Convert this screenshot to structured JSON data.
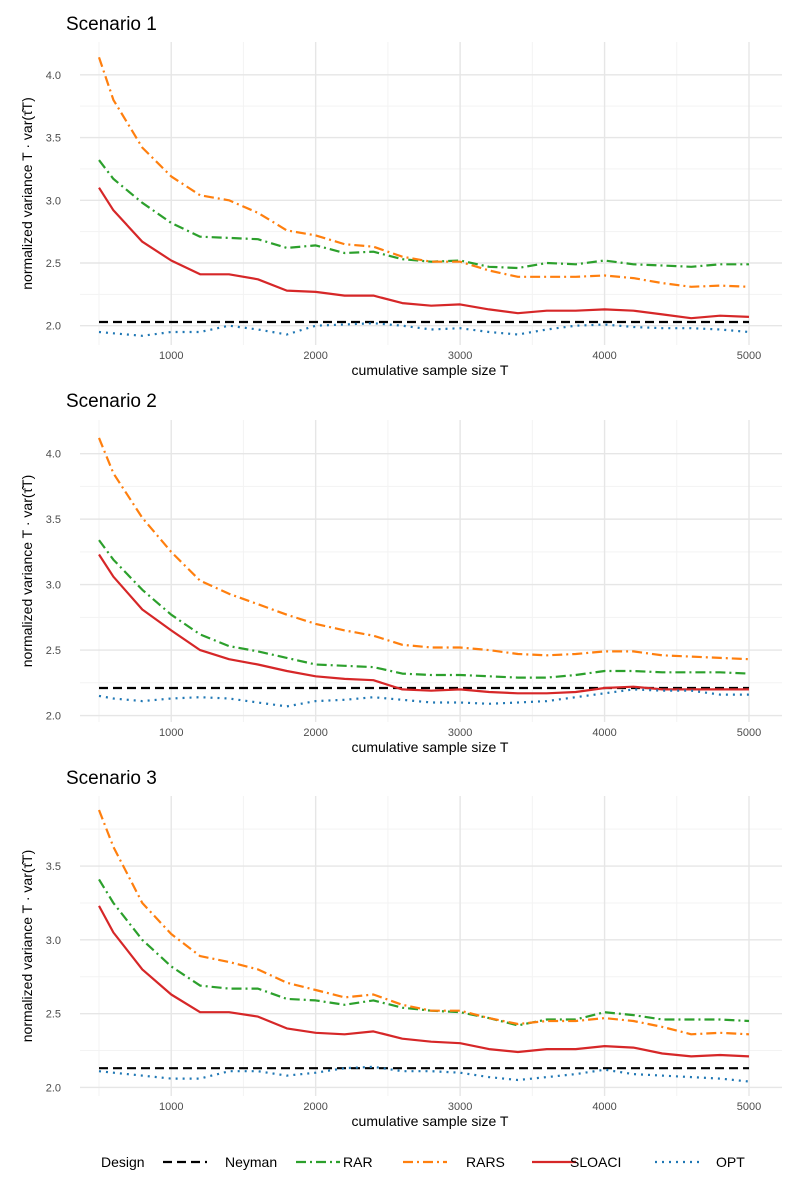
{
  "colors": {
    "Neyman": "#000000",
    "RAR": "#2ca02c",
    "RARS": "#ff7f0e",
    "SLOACI": "#d62728",
    "OPT": "#1f77b4",
    "grid": "#ebebeb"
  },
  "legend": {
    "title": "Design",
    "items": [
      "Neyman",
      "RAR",
      "RARS",
      "SLOACI",
      "OPT"
    ]
  },
  "chart_data": [
    {
      "type": "line",
      "title": "Scenario 1",
      "xlabel": "cumulative sample size T",
      "ylabel": "normalized variance   T · var(τ̂T)",
      "xlim": [
        500,
        5000
      ],
      "ylim": [
        1.95,
        4.15
      ],
      "xticks": [
        1000,
        2000,
        3000,
        4000,
        5000
      ],
      "yticks": [
        2.0,
        2.5,
        3.0,
        3.5,
        4.0
      ],
      "x": [
        500,
        600,
        800,
        1000,
        1200,
        1400,
        1600,
        1800,
        2000,
        2200,
        2400,
        2600,
        2800,
        3000,
        3200,
        3400,
        3600,
        3800,
        4000,
        4200,
        4400,
        4600,
        4800,
        5000
      ],
      "series": [
        {
          "name": "Neyman",
          "values": [
            2.03,
            2.03,
            2.03,
            2.03,
            2.03,
            2.03,
            2.03,
            2.03,
            2.03,
            2.03,
            2.03,
            2.03,
            2.03,
            2.03,
            2.03,
            2.03,
            2.03,
            2.03,
            2.03,
            2.03,
            2.03,
            2.03,
            2.03,
            2.03
          ]
        },
        {
          "name": "RAR",
          "values": [
            3.32,
            3.17,
            2.98,
            2.82,
            2.71,
            2.7,
            2.69,
            2.62,
            2.64,
            2.58,
            2.59,
            2.53,
            2.51,
            2.52,
            2.47,
            2.46,
            2.5,
            2.49,
            2.52,
            2.49,
            2.48,
            2.47,
            2.49,
            2.49
          ]
        },
        {
          "name": "RARS",
          "values": [
            4.14,
            3.8,
            3.42,
            3.19,
            3.04,
            3.0,
            2.9,
            2.76,
            2.72,
            2.65,
            2.63,
            2.55,
            2.51,
            2.51,
            2.44,
            2.39,
            2.39,
            2.39,
            2.4,
            2.38,
            2.34,
            2.31,
            2.32,
            2.31
          ]
        },
        {
          "name": "SLOACI",
          "values": [
            3.1,
            2.92,
            2.67,
            2.52,
            2.41,
            2.41,
            2.37,
            2.28,
            2.27,
            2.24,
            2.24,
            2.18,
            2.16,
            2.17,
            2.13,
            2.1,
            2.12,
            2.12,
            2.13,
            2.12,
            2.09,
            2.06,
            2.08,
            2.07
          ]
        },
        {
          "name": "OPT",
          "values": [
            1.95,
            1.94,
            1.92,
            1.95,
            1.95,
            2.0,
            1.97,
            1.93,
            2.0,
            2.01,
            2.02,
            2.0,
            1.97,
            1.98,
            1.95,
            1.93,
            1.97,
            2.0,
            2.01,
            1.99,
            1.98,
            1.98,
            1.97,
            1.95
          ]
        }
      ]
    },
    {
      "type": "line",
      "title": "Scenario 2",
      "xlabel": "cumulative sample size T",
      "ylabel": "normalized variance   T · var(τ̂T)",
      "xlim": [
        500,
        5000
      ],
      "ylim": [
        2.05,
        4.15
      ],
      "xticks": [
        1000,
        2000,
        3000,
        4000,
        5000
      ],
      "yticks": [
        2.0,
        2.5,
        3.0,
        3.5,
        4.0
      ],
      "x": [
        500,
        600,
        800,
        1000,
        1200,
        1400,
        1600,
        1800,
        2000,
        2200,
        2400,
        2600,
        2800,
        3000,
        3200,
        3400,
        3600,
        3800,
        4000,
        4200,
        4400,
        4600,
        4800,
        5000
      ],
      "series": [
        {
          "name": "Neyman",
          "values": [
            2.21,
            2.21,
            2.21,
            2.21,
            2.21,
            2.21,
            2.21,
            2.21,
            2.21,
            2.21,
            2.21,
            2.21,
            2.21,
            2.21,
            2.21,
            2.21,
            2.21,
            2.21,
            2.21,
            2.21,
            2.21,
            2.21,
            2.21,
            2.21
          ]
        },
        {
          "name": "RAR",
          "values": [
            3.34,
            3.19,
            2.96,
            2.77,
            2.62,
            2.53,
            2.49,
            2.44,
            2.39,
            2.38,
            2.37,
            2.32,
            2.31,
            2.31,
            2.3,
            2.29,
            2.29,
            2.31,
            2.34,
            2.34,
            2.33,
            2.33,
            2.33,
            2.32
          ]
        },
        {
          "name": "RARS",
          "values": [
            4.12,
            3.85,
            3.51,
            3.25,
            3.03,
            2.93,
            2.85,
            2.77,
            2.7,
            2.65,
            2.61,
            2.54,
            2.52,
            2.52,
            2.5,
            2.47,
            2.46,
            2.47,
            2.49,
            2.49,
            2.46,
            2.45,
            2.44,
            2.43
          ]
        },
        {
          "name": "SLOACI",
          "values": [
            3.23,
            3.06,
            2.81,
            2.65,
            2.5,
            2.43,
            2.39,
            2.34,
            2.3,
            2.28,
            2.27,
            2.2,
            2.19,
            2.2,
            2.18,
            2.17,
            2.17,
            2.18,
            2.21,
            2.22,
            2.2,
            2.2,
            2.2,
            2.2
          ]
        },
        {
          "name": "OPT",
          "values": [
            2.15,
            2.13,
            2.11,
            2.13,
            2.14,
            2.13,
            2.1,
            2.07,
            2.11,
            2.12,
            2.14,
            2.12,
            2.1,
            2.1,
            2.09,
            2.1,
            2.11,
            2.14,
            2.17,
            2.2,
            2.19,
            2.19,
            2.16,
            2.16
          ]
        }
      ]
    },
    {
      "type": "line",
      "title": "Scenario 3",
      "xlabel": "cumulative sample size T",
      "ylabel": "normalized variance   T · var(τ̂T)",
      "xlim": [
        500,
        5000
      ],
      "ylim": [
        2.03,
        3.88
      ],
      "xticks": [
        1000,
        2000,
        3000,
        4000,
        5000
      ],
      "yticks": [
        2.0,
        2.5,
        3.0,
        3.5
      ],
      "x": [
        500,
        600,
        800,
        1000,
        1200,
        1400,
        1600,
        1800,
        2000,
        2200,
        2400,
        2600,
        2800,
        3000,
        3200,
        3400,
        3600,
        3800,
        4000,
        4200,
        4400,
        4600,
        4800,
        5000
      ],
      "series": [
        {
          "name": "Neyman",
          "values": [
            2.13,
            2.13,
            2.13,
            2.13,
            2.13,
            2.13,
            2.13,
            2.13,
            2.13,
            2.13,
            2.13,
            2.13,
            2.13,
            2.13,
            2.13,
            2.13,
            2.13,
            2.13,
            2.13,
            2.13,
            2.13,
            2.13,
            2.13,
            2.13
          ]
        },
        {
          "name": "RAR",
          "values": [
            3.41,
            3.25,
            3.0,
            2.82,
            2.69,
            2.67,
            2.67,
            2.6,
            2.59,
            2.56,
            2.59,
            2.54,
            2.52,
            2.51,
            2.47,
            2.42,
            2.46,
            2.46,
            2.51,
            2.49,
            2.46,
            2.46,
            2.46,
            2.45
          ]
        },
        {
          "name": "RARS",
          "values": [
            3.88,
            3.63,
            3.25,
            3.04,
            2.89,
            2.85,
            2.8,
            2.71,
            2.66,
            2.61,
            2.63,
            2.56,
            2.52,
            2.52,
            2.47,
            2.43,
            2.45,
            2.45,
            2.47,
            2.45,
            2.41,
            2.36,
            2.37,
            2.36
          ]
        },
        {
          "name": "SLOACI",
          "values": [
            3.23,
            3.05,
            2.8,
            2.63,
            2.51,
            2.51,
            2.48,
            2.4,
            2.37,
            2.36,
            2.38,
            2.33,
            2.31,
            2.3,
            2.26,
            2.24,
            2.26,
            2.26,
            2.28,
            2.27,
            2.23,
            2.21,
            2.22,
            2.21
          ]
        },
        {
          "name": "OPT",
          "values": [
            2.11,
            2.1,
            2.08,
            2.06,
            2.06,
            2.11,
            2.11,
            2.08,
            2.1,
            2.13,
            2.14,
            2.11,
            2.11,
            2.1,
            2.07,
            2.05,
            2.07,
            2.09,
            2.12,
            2.09,
            2.08,
            2.07,
            2.06,
            2.04
          ]
        }
      ]
    }
  ]
}
